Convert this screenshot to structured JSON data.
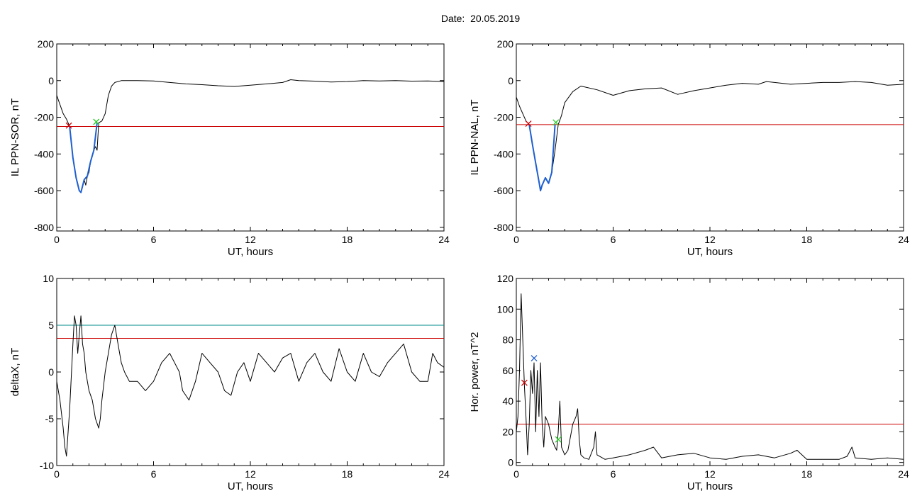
{
  "figure": {
    "title": "Date:  20.05.2019"
  },
  "colors": {
    "trace": "#000000",
    "threshold": "#cc0000",
    "threshold2": "#008b8b",
    "segment": "#1e5fd0",
    "marker_start": "#cc0000",
    "marker_end": "#22cc22",
    "marker_peak": "#1e5fd0"
  },
  "chart_data": [
    {
      "id": "il_ppn_sor",
      "type": "line",
      "title": "",
      "xlabel": "UT, hours",
      "ylabel": "IL PPN-SOR, nT",
      "xlim": [
        0,
        24
      ],
      "ylim": [
        -820,
        200
      ],
      "xticks": [
        0,
        6,
        12,
        18,
        24
      ],
      "xtick_labels": [
        "0",
        "6",
        "12",
        "18",
        "24"
      ],
      "yticks": [
        -800,
        -600,
        -400,
        -200,
        0,
        200
      ],
      "ytick_labels": [
        "-800",
        "-600",
        "-400",
        "-200",
        "0",
        "200"
      ],
      "grid": false,
      "series": [
        {
          "role": "trace",
          "x": [
            0,
            0.2,
            0.4,
            0.6,
            0.8,
            0.9,
            1.0,
            1.1,
            1.2,
            1.3,
            1.4,
            1.5,
            1.6,
            1.7,
            1.8,
            1.9,
            2.0,
            2.1,
            2.2,
            2.3,
            2.4,
            2.5,
            2.6,
            2.8,
            3.0,
            3.2,
            3.4,
            3.6,
            4,
            5,
            6,
            7,
            8,
            9,
            10,
            11,
            12,
            13,
            14,
            14.5,
            15,
            16,
            17,
            18,
            19,
            20,
            21,
            22,
            23,
            24
          ],
          "y": [
            -80,
            -130,
            -180,
            -210,
            -250,
            -340,
            -420,
            -470,
            -530,
            -560,
            -600,
            -610,
            -580,
            -540,
            -570,
            -520,
            -500,
            -440,
            -410,
            -380,
            -360,
            -380,
            -230,
            -220,
            -180,
            -80,
            -30,
            -10,
            0,
            0,
            -2,
            -10,
            -18,
            -22,
            -28,
            -32,
            -25,
            -18,
            -10,
            5,
            0,
            -3,
            -8,
            -5,
            0,
            -2,
            0,
            -3,
            -2,
            -5
          ]
        },
        {
          "role": "segment",
          "x": [
            0.8,
            1.0,
            1.2,
            1.4,
            1.5,
            1.7,
            1.9,
            2.1,
            2.3,
            2.5
          ],
          "y": [
            -250,
            -420,
            -530,
            -600,
            -610,
            -540,
            -520,
            -440,
            -380,
            -230
          ]
        }
      ],
      "threshold": -250,
      "markers": [
        {
          "role": "start",
          "x": 0.75,
          "y": -245
        },
        {
          "role": "end",
          "x": 2.45,
          "y": -225
        }
      ]
    },
    {
      "id": "il_ppn_nal",
      "type": "line",
      "title": "",
      "xlabel": "UT, hours",
      "ylabel": "IL PPN-NAL, nT",
      "xlim": [
        0,
        24
      ],
      "ylim": [
        -820,
        200
      ],
      "xticks": [
        0,
        6,
        12,
        18,
        24
      ],
      "xtick_labels": [
        "0",
        "6",
        "12",
        "18",
        "24"
      ],
      "yticks": [
        -800,
        -600,
        -400,
        -200,
        0,
        200
      ],
      "ytick_labels": [
        "-800",
        "-600",
        "-400",
        "-200",
        "0",
        "200"
      ],
      "grid": false,
      "series": [
        {
          "role": "trace",
          "x": [
            0,
            0.2,
            0.4,
            0.6,
            0.8,
            1.0,
            1.2,
            1.4,
            1.5,
            1.6,
            1.8,
            2.0,
            2.2,
            2.4,
            2.6,
            2.8,
            3.0,
            3.5,
            4,
            5,
            6,
            7,
            8,
            9,
            10,
            11,
            12,
            13,
            14,
            15,
            15.5,
            16,
            17,
            18,
            19,
            20,
            21,
            22,
            23,
            24
          ],
          "y": [
            -90,
            -140,
            -180,
            -220,
            -240,
            -350,
            -450,
            -550,
            -600,
            -570,
            -530,
            -560,
            -500,
            -380,
            -240,
            -190,
            -120,
            -60,
            -30,
            -50,
            -80,
            -55,
            -45,
            -40,
            -75,
            -55,
            -40,
            -25,
            -15,
            -20,
            -5,
            -10,
            -20,
            -15,
            -10,
            -10,
            -5,
            -10,
            -25,
            -20
          ]
        },
        {
          "role": "segment",
          "x": [
            0.8,
            1.0,
            1.2,
            1.4,
            1.5,
            1.6,
            1.8,
            2.0,
            2.2,
            2.4
          ],
          "y": [
            -240,
            -350,
            -450,
            -550,
            -600,
            -570,
            -530,
            -560,
            -500,
            -240
          ]
        }
      ],
      "threshold": -240,
      "markers": [
        {
          "role": "start",
          "x": 0.75,
          "y": -235
        },
        {
          "role": "end",
          "x": 2.45,
          "y": -228
        }
      ]
    },
    {
      "id": "delta_x",
      "type": "line",
      "title": "",
      "xlabel": "UT, hours",
      "ylabel": "deltaX, nT",
      "xlim": [
        0,
        24
      ],
      "ylim": [
        -10,
        10
      ],
      "xticks": [
        0,
        6,
        12,
        18,
        24
      ],
      "xtick_labels": [
        "0",
        "6",
        "12",
        "18",
        "24"
      ],
      "yticks": [
        -10,
        -5,
        0,
        5,
        10
      ],
      "ytick_labels": [
        "-10",
        "-5",
        "0",
        "5",
        "10"
      ],
      "grid": false,
      "series": [
        {
          "role": "trace",
          "x": [
            0,
            0.2,
            0.4,
            0.5,
            0.6,
            0.8,
            1.0,
            1.1,
            1.2,
            1.3,
            1.4,
            1.5,
            1.6,
            1.7,
            1.8,
            2.0,
            2.2,
            2.4,
            2.6,
            2.7,
            2.8,
            3.0,
            3.2,
            3.4,
            3.6,
            3.8,
            4.0,
            4.2,
            4.5,
            5,
            5.5,
            6,
            6.5,
            7,
            7.3,
            7.6,
            7.8,
            8.2,
            8.6,
            9,
            9.5,
            10,
            10.4,
            10.8,
            11.2,
            11.6,
            12,
            12.5,
            13,
            13.5,
            14,
            14.5,
            15,
            15.5,
            16,
            16.5,
            17,
            17.5,
            18,
            18.5,
            19,
            19.5,
            20,
            20.5,
            21,
            21.5,
            22,
            22.5,
            23,
            23.3,
            23.6,
            24
          ],
          "y": [
            -1,
            -3,
            -6,
            -8,
            -9,
            -4,
            3,
            6,
            5,
            2,
            4,
            6,
            3,
            2,
            0,
            -2,
            -3,
            -5,
            -6,
            -5,
            -3,
            0,
            2,
            4,
            5,
            3,
            1,
            0,
            -1,
            -1,
            -2,
            -1,
            1,
            2,
            1,
            0,
            -2,
            -3,
            -1,
            2,
            1,
            0,
            -2,
            -2.5,
            0,
            1,
            -1,
            2,
            1,
            0,
            1.5,
            2,
            -1,
            1,
            2,
            0,
            -1,
            2.5,
            0,
            -1,
            2,
            0,
            -0.5,
            1,
            2,
            3,
            0,
            -1,
            -1,
            2,
            1,
            0.5
          ]
        }
      ],
      "threshold": 3.6,
      "threshold2": 5,
      "markers": []
    },
    {
      "id": "hor_power",
      "type": "line",
      "title": "",
      "xlabel": "UT, hours",
      "ylabel": "Hor. power, nT^2",
      "xlim": [
        0,
        24
      ],
      "ylim": [
        -2,
        120
      ],
      "xticks": [
        0,
        6,
        12,
        18,
        24
      ],
      "xtick_labels": [
        "0",
        "6",
        "12",
        "18",
        "24"
      ],
      "yticks": [
        0,
        20,
        40,
        60,
        80,
        100,
        120
      ],
      "ytick_labels": [
        "0",
        "20",
        "40",
        "60",
        "80",
        "100",
        "120"
      ],
      "grid": false,
      "series": [
        {
          "role": "trace",
          "x": [
            0,
            0.1,
            0.2,
            0.3,
            0.4,
            0.5,
            0.6,
            0.7,
            0.8,
            0.9,
            1.0,
            1.1,
            1.2,
            1.3,
            1.4,
            1.5,
            1.6,
            1.7,
            1.8,
            2.0,
            2.2,
            2.4,
            2.5,
            2.6,
            2.7,
            2.8,
            3.0,
            3.2,
            3.5,
            3.7,
            3.8,
            3.9,
            4.0,
            4.2,
            4.5,
            4.8,
            4.9,
            5.0,
            5.5,
            6,
            7,
            8,
            8.5,
            9,
            10,
            11,
            12,
            13,
            14,
            15,
            16,
            17,
            17.4,
            18,
            19,
            20,
            20.5,
            20.8,
            21,
            22,
            23,
            24
          ],
          "y": [
            20,
            30,
            60,
            110,
            80,
            50,
            30,
            5,
            25,
            60,
            45,
            65,
            20,
            60,
            30,
            65,
            25,
            10,
            30,
            25,
            15,
            10,
            8,
            20,
            40,
            10,
            5,
            8,
            25,
            30,
            35,
            15,
            5,
            3,
            2,
            10,
            20,
            5,
            2,
            3,
            5,
            8,
            10,
            3,
            5,
            6,
            3,
            2,
            4,
            5,
            3,
            6,
            8,
            2,
            2,
            2,
            4,
            10,
            3,
            2,
            3,
            2
          ]
        }
      ],
      "threshold": 25,
      "markers": [
        {
          "role": "start",
          "x": 0.5,
          "y": 52
        },
        {
          "role": "peak",
          "x": 1.1,
          "y": 68
        },
        {
          "role": "end",
          "x": 2.6,
          "y": 15
        }
      ]
    }
  ]
}
